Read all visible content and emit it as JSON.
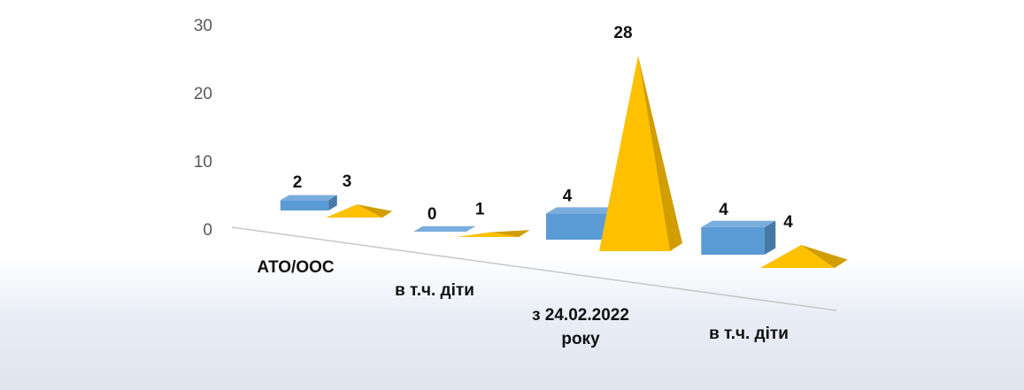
{
  "chart_data": {
    "type": "bar",
    "title": "",
    "xlabel": "",
    "ylabel": "",
    "ylim": [
      0,
      30
    ],
    "yticks": [
      "0",
      "10",
      "20",
      "30"
    ],
    "categories": [
      [
        "АТО/ООС"
      ],
      [
        "в т.ч. діти"
      ],
      [
        "з 24.02.2022",
        "року"
      ],
      [
        "в т.ч. діти"
      ]
    ],
    "series": [
      {
        "values": [
          2,
          0,
          4,
          4
        ],
        "shape": "box",
        "color": "#5b9bd5"
      },
      {
        "values": [
          3,
          1,
          28,
          4
        ],
        "shape": "pyramid",
        "color": "#ffc000"
      }
    ],
    "grid": false,
    "legend": "none"
  }
}
